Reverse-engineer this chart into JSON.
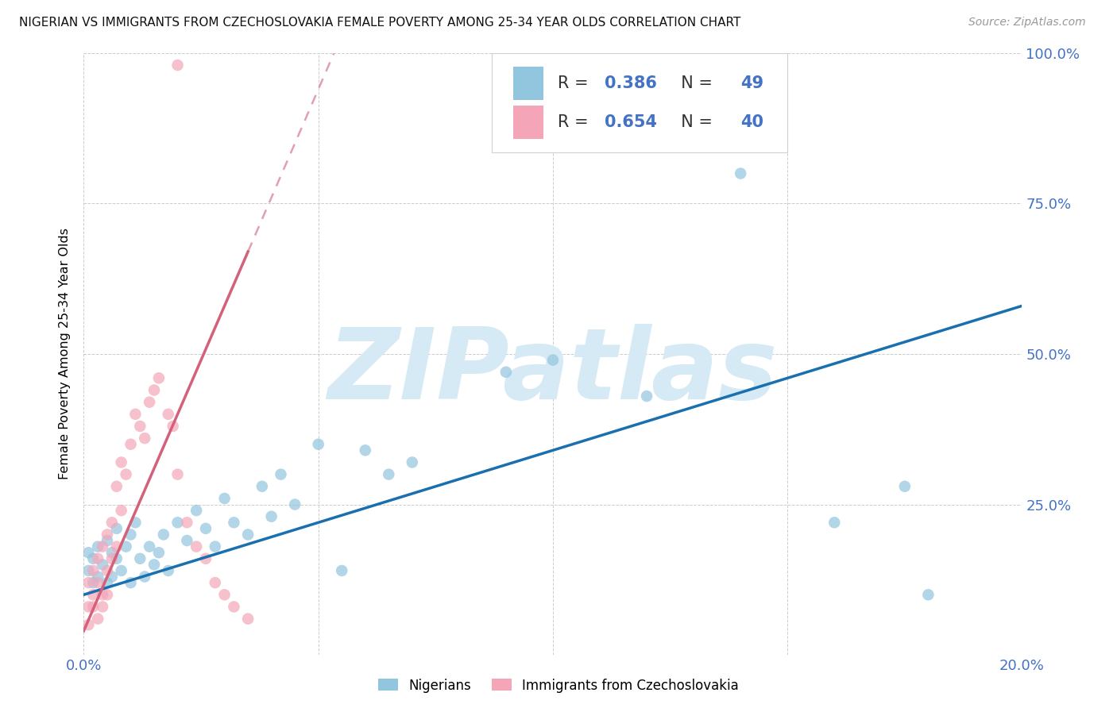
{
  "title": "NIGERIAN VS IMMIGRANTS FROM CZECHOSLOVAKIA FEMALE POVERTY AMONG 25-34 YEAR OLDS CORRELATION CHART",
  "source": "Source: ZipAtlas.com",
  "ylabel": "Female Poverty Among 25-34 Year Olds",
  "xlim": [
    0.0,
    0.2
  ],
  "ylim": [
    0.0,
    1.0
  ],
  "R_nigerian": 0.386,
  "N_nigerian": 49,
  "R_czech": 0.654,
  "N_czech": 40,
  "color_nigerian": "#92c5de",
  "color_czech": "#f4a6b8",
  "color_nigerian_line": "#1a6faf",
  "color_czech_line": "#d4607a",
  "color_czech_line_dashed": "#e0a0b0",
  "color_axis_labels": "#4472c4",
  "background_color": "#ffffff",
  "grid_color": "#cccccc",
  "watermark": "ZIPatlas",
  "watermark_color": "#d5eaf5",
  "nigerian_x": [
    0.001,
    0.001,
    0.002,
    0.002,
    0.003,
    0.003,
    0.004,
    0.005,
    0.005,
    0.006,
    0.006,
    0.007,
    0.007,
    0.008,
    0.009,
    0.01,
    0.01,
    0.011,
    0.012,
    0.013,
    0.014,
    0.015,
    0.016,
    0.017,
    0.018,
    0.02,
    0.022,
    0.024,
    0.026,
    0.028,
    0.03,
    0.032,
    0.035,
    0.038,
    0.04,
    0.042,
    0.045,
    0.05,
    0.055,
    0.06,
    0.065,
    0.07,
    0.09,
    0.1,
    0.12,
    0.14,
    0.16,
    0.175,
    0.18
  ],
  "nigerian_y": [
    0.14,
    0.17,
    0.12,
    0.16,
    0.13,
    0.18,
    0.15,
    0.19,
    0.12,
    0.17,
    0.13,
    0.16,
    0.21,
    0.14,
    0.18,
    0.2,
    0.12,
    0.22,
    0.16,
    0.13,
    0.18,
    0.15,
    0.17,
    0.2,
    0.14,
    0.22,
    0.19,
    0.24,
    0.21,
    0.18,
    0.26,
    0.22,
    0.2,
    0.28,
    0.23,
    0.3,
    0.25,
    0.35,
    0.14,
    0.34,
    0.3,
    0.32,
    0.47,
    0.49,
    0.43,
    0.8,
    0.22,
    0.28,
    0.1
  ],
  "czech_x": [
    0.001,
    0.001,
    0.001,
    0.002,
    0.002,
    0.002,
    0.003,
    0.003,
    0.003,
    0.004,
    0.004,
    0.004,
    0.005,
    0.005,
    0.005,
    0.006,
    0.006,
    0.007,
    0.007,
    0.008,
    0.008,
    0.009,
    0.01,
    0.011,
    0.012,
    0.013,
    0.014,
    0.015,
    0.016,
    0.018,
    0.019,
    0.02,
    0.022,
    0.024,
    0.026,
    0.028,
    0.03,
    0.032,
    0.035,
    0.02
  ],
  "czech_y": [
    0.08,
    0.12,
    0.05,
    0.1,
    0.14,
    0.08,
    0.12,
    0.06,
    0.16,
    0.1,
    0.18,
    0.08,
    0.14,
    0.2,
    0.1,
    0.22,
    0.16,
    0.28,
    0.18,
    0.24,
    0.32,
    0.3,
    0.35,
    0.4,
    0.38,
    0.36,
    0.42,
    0.44,
    0.46,
    0.4,
    0.38,
    0.3,
    0.22,
    0.18,
    0.16,
    0.12,
    0.1,
    0.08,
    0.06,
    0.98
  ],
  "czech_line_x_end_solid": 0.035,
  "nigerian_line_slope": 2.4,
  "nigerian_line_intercept": 0.1,
  "czech_line_slope": 18.0,
  "czech_line_intercept": 0.04
}
